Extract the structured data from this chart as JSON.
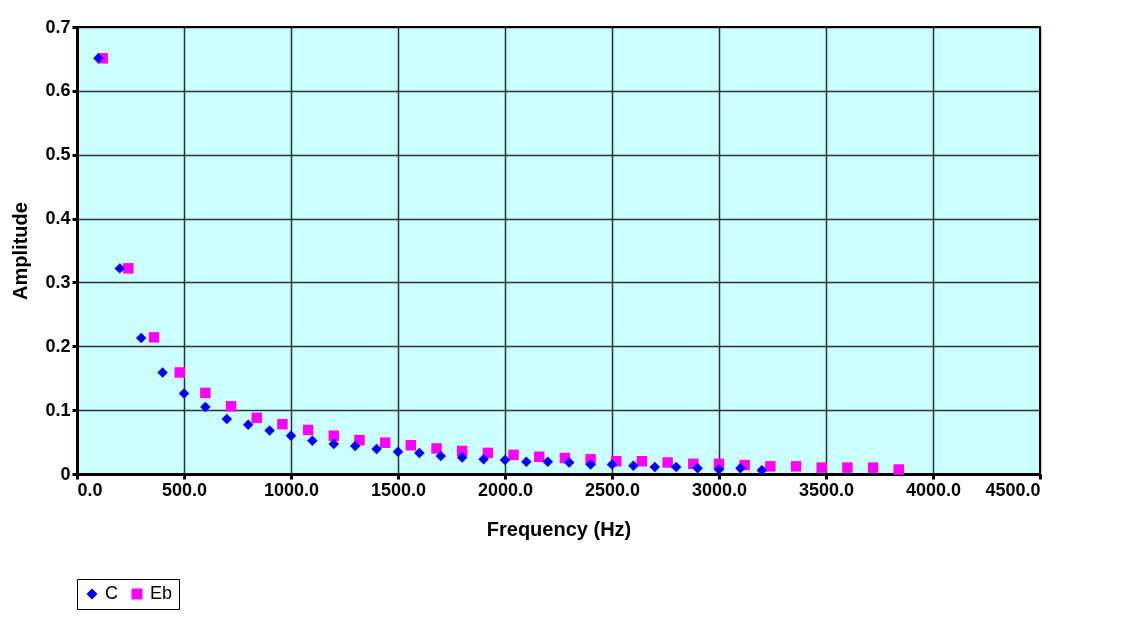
{
  "chart_data": {
    "type": "scatter",
    "xlabel": "Frequency (Hz)",
    "ylabel": "Amplitude",
    "xlim": [
      0,
      4500
    ],
    "xticks": [
      {
        "value": 0,
        "label": "0.0"
      },
      {
        "value": 500,
        "label": "500.0"
      },
      {
        "value": 1000,
        "label": "1000.0"
      },
      {
        "value": 1500,
        "label": "1500.0"
      },
      {
        "value": 2000,
        "label": "2000.0"
      },
      {
        "value": 2500,
        "label": "2500.0"
      },
      {
        "value": 3000,
        "label": "3000.0"
      },
      {
        "value": 3500,
        "label": "3500.0"
      },
      {
        "value": 4000,
        "label": "4000.0"
      },
      {
        "value": 4500,
        "label": "4500.0"
      }
    ],
    "ylim": [
      0,
      0.7
    ],
    "yticks": [
      0,
      0.1,
      0.2,
      0.3,
      0.4,
      0.5,
      0.6,
      0.7
    ],
    "grid": true,
    "legend": "bottom",
    "series": [
      {
        "name": "C",
        "color": "#0000ff",
        "marker": "diamond",
        "x": [
          100,
          200,
          300,
          400,
          500,
          600,
          700,
          800,
          900,
          1000,
          1100,
          1200,
          1300,
          1400,
          1500,
          1600,
          1700,
          1800,
          1900,
          2000,
          2100,
          2200,
          2300,
          2400,
          2500,
          2600,
          2700,
          2800,
          2900,
          3000,
          3100,
          3200
        ],
        "values": [
          0.651,
          0.322,
          0.213,
          0.159,
          0.126,
          0.105,
          0.086,
          0.077,
          0.068,
          0.06,
          0.052,
          0.047,
          0.044,
          0.039,
          0.035,
          0.033,
          0.028,
          0.026,
          0.023,
          0.022,
          0.019,
          0.019,
          0.018,
          0.015,
          0.015,
          0.013,
          0.011,
          0.011,
          0.009,
          0.007,
          0.009,
          0.006
        ]
      },
      {
        "name": "Eb",
        "color": "#ff00ff",
        "marker": "square",
        "x": [
          120,
          240,
          360,
          480,
          600,
          720,
          840,
          960,
          1080,
          1200,
          1320,
          1440,
          1560,
          1680,
          1800,
          1920,
          2040,
          2160,
          2280,
          2400,
          2520,
          2640,
          2760,
          2880,
          3000,
          3120,
          3240,
          3360,
          3480,
          3600,
          3720,
          3840
        ],
        "values": [
          0.651,
          0.322,
          0.214,
          0.159,
          0.127,
          0.106,
          0.088,
          0.078,
          0.069,
          0.06,
          0.053,
          0.049,
          0.045,
          0.04,
          0.036,
          0.033,
          0.03,
          0.027,
          0.025,
          0.023,
          0.02,
          0.02,
          0.018,
          0.016,
          0.016,
          0.014,
          0.012,
          0.012,
          0.01,
          0.01,
          0.01,
          0.007
        ]
      }
    ]
  }
}
